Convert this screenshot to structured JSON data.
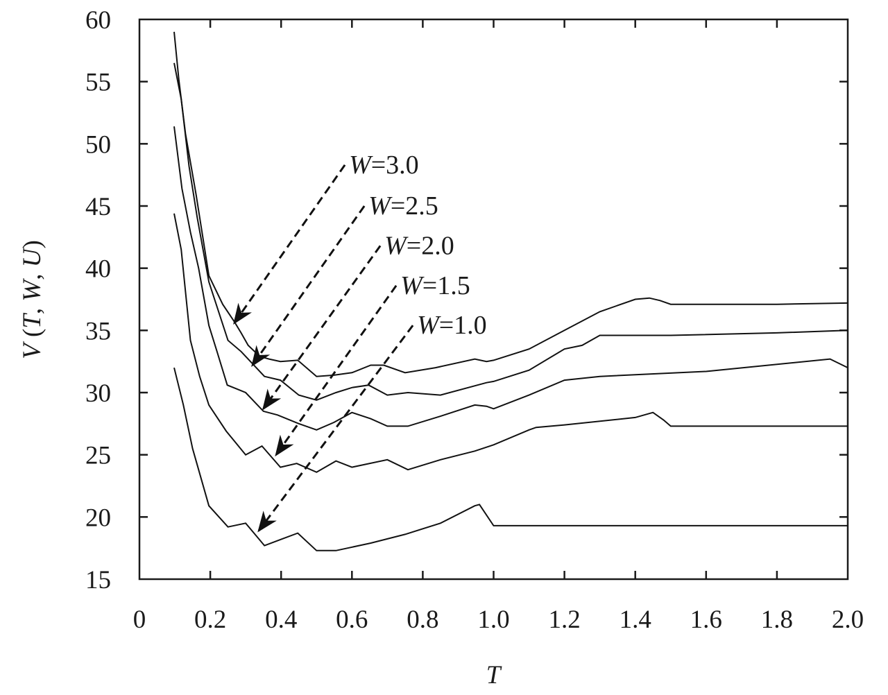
{
  "chart_data": {
    "type": "line",
    "title": "",
    "xlabel": "T",
    "ylabel_parts": {
      "v": "V",
      "open": " (",
      "t": "T",
      "c1": ", ",
      "w": "W",
      "c2": ", ",
      "u": "U",
      "close": ")"
    },
    "xlim": [
      0,
      2.0
    ],
    "ylim": [
      15,
      60
    ],
    "x_ticks": [
      "0",
      "0.2",
      "0.4",
      "0.6",
      "0.8",
      "1.0",
      "1.2",
      "1.4",
      "1.6",
      "1.8",
      "2.0"
    ],
    "x_tick_values": [
      0,
      0.2,
      0.4,
      0.6,
      0.8,
      1.0,
      1.2,
      1.4,
      1.6,
      1.8,
      2.0
    ],
    "y_ticks": [
      "15",
      "20",
      "25",
      "30",
      "35",
      "40",
      "45",
      "50",
      "55",
      "60"
    ],
    "y_tick_values": [
      15,
      20,
      25,
      30,
      35,
      40,
      45,
      50,
      55,
      60
    ],
    "grid": false,
    "series": [
      {
        "name": "W=3.0",
        "w_prefix": "W",
        "w_value": "=3.0",
        "x": [
          0.098,
          0.111,
          0.13,
          0.16,
          0.196,
          0.235,
          0.268,
          0.287,
          0.307,
          0.34,
          0.366,
          0.398,
          0.447,
          0.5,
          0.549,
          0.6,
          0.653,
          0.69,
          0.75,
          0.836,
          0.947,
          0.98,
          1.0,
          1.1,
          1.2,
          1.3,
          1.4,
          1.44,
          1.47,
          1.5,
          1.8,
          2.0
        ],
        "y": [
          59.0,
          55.2,
          50.8,
          45.9,
          39.4,
          37.1,
          35.7,
          34.8,
          33.8,
          32.9,
          32.7,
          32.5,
          32.6,
          31.3,
          31.4,
          31.6,
          32.2,
          32.2,
          31.6,
          32.0,
          32.7,
          32.5,
          32.6,
          33.5,
          35.0,
          36.5,
          37.5,
          37.6,
          37.4,
          37.1,
          37.1,
          37.2
        ],
        "arrow": {
          "from": [
            0.58,
            48.3
          ],
          "to": [
            0.268,
            35.6
          ]
        }
      },
      {
        "name": "W=2.5",
        "w_prefix": "W",
        "w_value": "=2.5",
        "x": [
          0.098,
          0.118,
          0.14,
          0.163,
          0.196,
          0.25,
          0.287,
          0.32,
          0.353,
          0.398,
          0.45,
          0.5,
          0.555,
          0.6,
          0.647,
          0.7,
          0.758,
          0.85,
          0.98,
          1.0,
          1.1,
          1.2,
          1.25,
          1.3,
          1.5,
          1.8,
          2.0
        ],
        "y": [
          56.5,
          53.6,
          48.2,
          44.1,
          38.9,
          34.2,
          33.3,
          32.3,
          31.3,
          31.0,
          29.8,
          29.4,
          30.0,
          30.4,
          30.6,
          29.8,
          30.0,
          29.8,
          30.8,
          30.9,
          31.8,
          33.5,
          33.8,
          34.6,
          34.6,
          34.8,
          35.0
        ],
        "arrow": {
          "from": [
            0.635,
            45.0
          ],
          "to": [
            0.319,
            32.2
          ]
        }
      },
      {
        "name": "W=2.0",
        "w_prefix": "W",
        "w_value": "=2.0",
        "x": [
          0.098,
          0.12,
          0.144,
          0.167,
          0.196,
          0.219,
          0.248,
          0.274,
          0.3,
          0.35,
          0.39,
          0.45,
          0.5,
          0.549,
          0.6,
          0.653,
          0.7,
          0.758,
          0.85,
          0.947,
          0.98,
          1.0,
          1.1,
          1.2,
          1.3,
          1.6,
          1.95,
          2.0
        ],
        "y": [
          51.4,
          46.4,
          42.9,
          40.0,
          35.4,
          33.3,
          30.6,
          30.3,
          30.0,
          28.5,
          28.2,
          27.5,
          27.0,
          27.6,
          28.4,
          27.9,
          27.3,
          27.3,
          28.1,
          29.0,
          28.9,
          28.7,
          29.8,
          31.0,
          31.3,
          31.7,
          32.7,
          32.0
        ],
        "arrow": {
          "from": [
            0.68,
            41.8
          ],
          "to": [
            0.35,
            28.7
          ]
        }
      },
      {
        "name": "W=1.5",
        "w_prefix": "W",
        "w_value": "=1.5",
        "x": [
          0.098,
          0.118,
          0.144,
          0.17,
          0.196,
          0.245,
          0.3,
          0.346,
          0.398,
          0.444,
          0.5,
          0.555,
          0.6,
          0.7,
          0.758,
          0.85,
          0.947,
          1.0,
          1.1,
          1.12,
          1.2,
          1.4,
          1.45,
          1.48,
          1.5,
          2.0
        ],
        "y": [
          44.4,
          41.5,
          34.2,
          31.3,
          29.0,
          26.9,
          25.0,
          25.7,
          24.0,
          24.3,
          23.6,
          24.5,
          24.0,
          24.6,
          23.8,
          24.6,
          25.3,
          25.8,
          27.0,
          27.2,
          27.4,
          28.0,
          28.4,
          27.8,
          27.3,
          27.3
        ],
        "arrow": {
          "from": [
            0.725,
            38.6
          ],
          "to": [
            0.386,
            25.0
          ]
        }
      },
      {
        "name": "W=1.0",
        "w_prefix": "W",
        "w_value": "=1.0",
        "x": [
          0.098,
          0.124,
          0.15,
          0.196,
          0.25,
          0.3,
          0.353,
          0.4,
          0.447,
          0.5,
          0.555,
          0.653,
          0.75,
          0.85,
          0.947,
          0.96,
          1.0,
          2.0
        ],
        "y": [
          32.0,
          29.0,
          25.5,
          20.9,
          19.2,
          19.5,
          17.7,
          18.2,
          18.7,
          17.3,
          17.3,
          17.9,
          18.6,
          19.5,
          20.9,
          21.0,
          19.3,
          19.3
        ],
        "arrow": {
          "from": [
            0.772,
            35.4
          ],
          "to": [
            0.337,
            18.9
          ]
        }
      }
    ]
  }
}
